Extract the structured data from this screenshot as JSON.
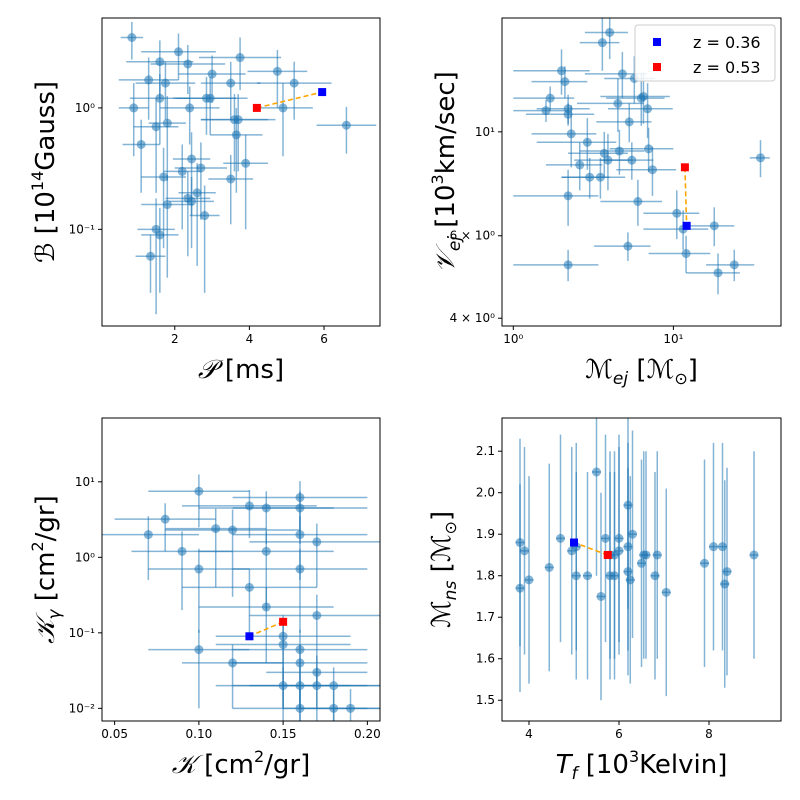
{
  "chart_data": [
    {
      "type": "scatter",
      "id": "p1",
      "xlabel_main": "𝒫",
      "xlabel_unit": "[ms]",
      "ylabel_main": "ℬ",
      "ylabel_unit": "[10",
      "ylabel_sup": "14",
      "ylabel_tail": "Gauss]",
      "xscale": "linear",
      "yscale": "log",
      "xlim": [
        0.05,
        7.5
      ],
      "ylim": [
        0.016,
        5.5
      ],
      "xticks": [
        {
          "v": 2,
          "label": "2"
        },
        {
          "v": 4,
          "label": "4"
        },
        {
          "v": 6,
          "label": "6"
        }
      ],
      "yticks": [
        {
          "v": 0.1,
          "label": "10⁻¹"
        },
        {
          "v": 1,
          "label": "10⁰"
        }
      ],
      "errorbars": true,
      "points": [
        [
          0.85,
          3.8,
          0.3,
          1.3
        ],
        [
          0.9,
          1.0,
          0.4,
          0.6
        ],
        [
          1.1,
          0.5,
          0.5,
          0.3
        ],
        [
          1.3,
          1.7,
          0.8,
          0.9
        ],
        [
          1.35,
          0.06,
          0.4,
          0.03
        ],
        [
          1.5,
          0.1,
          0.5,
          0.08
        ],
        [
          1.5,
          0.7,
          0.6,
          0.5
        ],
        [
          1.6,
          2.4,
          0.9,
          1.2
        ],
        [
          1.6,
          1.2,
          0.8,
          0.7
        ],
        [
          1.6,
          0.09,
          0.5,
          0.06
        ],
        [
          1.7,
          0.27,
          0.6,
          0.2
        ],
        [
          1.75,
          1.6,
          0.8,
          0.8
        ],
        [
          1.8,
          0.75,
          0.5,
          0.5
        ],
        [
          1.8,
          0.16,
          0.7,
          0.12
        ],
        [
          2.1,
          2.9,
          1.0,
          1.2
        ],
        [
          2.2,
          0.3,
          0.5,
          0.2
        ],
        [
          2.35,
          0.18,
          0.6,
          0.12
        ],
        [
          2.35,
          2.3,
          1.0,
          1.0
        ],
        [
          2.4,
          1.0,
          0.8,
          0.5
        ],
        [
          2.45,
          0.38,
          0.5,
          0.25
        ],
        [
          2.45,
          0.17,
          0.6,
          0.1
        ],
        [
          2.6,
          0.2,
          0.5,
          0.15
        ],
        [
          2.7,
          0.32,
          0.7,
          0.2
        ],
        [
          2.8,
          0.13,
          0.4,
          0.1
        ],
        [
          2.85,
          1.2,
          0.8,
          0.6
        ],
        [
          2.95,
          1.2,
          1.0,
          0.6
        ],
        [
          3.0,
          1.9,
          0.9,
          0.8
        ],
        [
          3.5,
          1.6,
          0.8,
          0.8
        ],
        [
          3.5,
          0.26,
          0.6,
          0.15
        ],
        [
          3.6,
          0.8,
          0.9,
          0.5
        ],
        [
          3.65,
          0.6,
          0.7,
          0.4
        ],
        [
          3.7,
          0.8,
          1.0,
          0.5
        ],
        [
          3.75,
          2.6,
          1.1,
          1.2
        ],
        [
          3.9,
          0.35,
          0.6,
          0.25
        ],
        [
          4.75,
          2.0,
          0.8,
          1.0
        ],
        [
          4.9,
          1.0,
          0.8,
          0.6
        ],
        [
          5.2,
          1.6,
          1.0,
          0.8
        ],
        [
          6.6,
          0.72,
          0.8,
          0.3
        ]
      ],
      "red": [
        4.2,
        1.0
      ],
      "blue": [
        5.95,
        1.35
      ]
    },
    {
      "type": "scatter",
      "id": "p2",
      "xlabel_main": "ℳ",
      "xlabel_sub": "ej",
      "xlabel_unit": "[ℳ",
      "xlabel_sub2": "⊙",
      "xlabel_tail": "]",
      "ylabel_main": "𝒱",
      "ylabel_sub": "ej",
      "ylabel_unit": "[10",
      "ylabel_sup": "3",
      "ylabel_tail": "km/sec]",
      "xscale": "log",
      "yscale": "log",
      "xlim": [
        0.85,
        47
      ],
      "ylim": [
        3.85,
        17.5
      ],
      "xticks": [
        {
          "v": 1,
          "label": "10⁰"
        },
        {
          "v": 10,
          "label": "10¹"
        }
      ],
      "yticks": [
        {
          "v": 4,
          "label": "4 × 10⁰"
        },
        {
          "v": 6,
          "label": "6 × 10⁰"
        },
        {
          "v": 10,
          "label": "10¹"
        }
      ],
      "errorbars": true,
      "points": [
        [
          1.6,
          11.1,
          0.6,
          0.6
        ],
        [
          1.7,
          11.8,
          0.7,
          0.7
        ],
        [
          2.0,
          13.5,
          1.0,
          1.5
        ],
        [
          2.1,
          12.8,
          0.8,
          1.0
        ],
        [
          2.2,
          11.2,
          0.8,
          0.8
        ],
        [
          2.2,
          10.9,
          1.0,
          0.6
        ],
        [
          2.2,
          7.3,
          1.2,
          1.0
        ],
        [
          2.2,
          5.2,
          1.2,
          0.4
        ],
        [
          2.3,
          9.9,
          1.0,
          1.5
        ],
        [
          2.6,
          8.5,
          1.0,
          1.0
        ],
        [
          2.9,
          9.5,
          1.5,
          1.2
        ],
        [
          3.0,
          8.0,
          1.0,
          0.8
        ],
        [
          3.5,
          8.0,
          1.5,
          0.8
        ],
        [
          3.6,
          15.5,
          1.0,
          2.0
        ],
        [
          3.7,
          9.0,
          1.5,
          1.0
        ],
        [
          3.9,
          8.7,
          1.5,
          1.2
        ],
        [
          4.0,
          16.3,
          1.2,
          2.0
        ],
        [
          4.5,
          11.5,
          2.0,
          1.5
        ],
        [
          4.6,
          9.1,
          2.0,
          1.0
        ],
        [
          4.8,
          13.3,
          2.0,
          1.5
        ],
        [
          5.2,
          5.7,
          2.0,
          0.4
        ],
        [
          5.3,
          10.5,
          2.0,
          1.0
        ],
        [
          5.5,
          8.7,
          2.0,
          0.8
        ],
        [
          5.7,
          13.0,
          2.0,
          1.5
        ],
        [
          6.0,
          7.1,
          2.5,
          0.8
        ],
        [
          6.3,
          11.8,
          2.5,
          1.5
        ],
        [
          6.5,
          11.9,
          3.0,
          1.5
        ],
        [
          6.9,
          11.2,
          3.0,
          1.5
        ],
        [
          7.0,
          9.2,
          3.0,
          1.0
        ],
        [
          7.4,
          8.3,
          3.0,
          1.0
        ],
        [
          10.5,
          6.7,
          4.0,
          0.8
        ],
        [
          11.5,
          6.2,
          5.0,
          0.6
        ],
        [
          12.0,
          5.5,
          5.0,
          0.5
        ],
        [
          18.0,
          6.3,
          6.0,
          0.6
        ],
        [
          19.0,
          5.0,
          7.0,
          0.5
        ],
        [
          24.0,
          5.2,
          8.0,
          0.4
        ],
        [
          35.0,
          8.8,
          5.0,
          0.8
        ]
      ],
      "red": [
        11.8,
        8.4
      ],
      "blue": [
        12.1,
        6.3
      ],
      "legend": [
        {
          "label": "z = 0.36",
          "color": "#0000ff"
        },
        {
          "label": "z = 0.53",
          "color": "#ff0000"
        }
      ],
      "legend_position": "top-right"
    },
    {
      "type": "scatter",
      "id": "p3",
      "xlabel_main": "𝒦",
      "xlabel_unit": "[cm",
      "xlabel_sup": "2",
      "xlabel_tail": "/gr]",
      "ylabel_main": "𝒦",
      "ylabel_sub": "γ",
      "ylabel_unit": "[cm",
      "ylabel_sup": "2",
      "ylabel_tail": "/gr]",
      "xscale": "linear",
      "yscale": "log",
      "xlim": [
        0.0425,
        0.2075
      ],
      "ylim": [
        0.0068,
        70
      ],
      "xticks": [
        {
          "v": 0.05,
          "label": "0.05"
        },
        {
          "v": 0.1,
          "label": "0.10"
        },
        {
          "v": 0.15,
          "label": "0.15"
        },
        {
          "v": 0.2,
          "label": "0.20"
        }
      ],
      "yticks": [
        {
          "v": 0.01,
          "label": "10⁻²"
        },
        {
          "v": 0.1,
          "label": "10⁻¹"
        },
        {
          "v": 1,
          "label": "10⁰"
        },
        {
          "v": 10,
          "label": "10¹"
        }
      ],
      "errorbars": true,
      "points": [
        [
          0.07,
          2.0,
          0.03,
          1.5
        ],
        [
          0.08,
          3.2,
          0.03,
          2.0
        ],
        [
          0.09,
          1.2,
          0.03,
          1.0
        ],
        [
          0.1,
          7.5,
          0.03,
          5.0
        ],
        [
          0.1,
          0.7,
          0.03,
          0.6
        ],
        [
          0.1,
          0.06,
          0.03,
          0.05
        ],
        [
          0.11,
          2.4,
          0.03,
          2.0
        ],
        [
          0.12,
          2.3,
          0.04,
          2.0
        ],
        [
          0.12,
          0.04,
          0.03,
          0.03
        ],
        [
          0.13,
          4.8,
          0.04,
          3.0
        ],
        [
          0.13,
          0.4,
          0.04,
          0.3
        ],
        [
          0.14,
          4.5,
          0.04,
          3.0
        ],
        [
          0.14,
          1.2,
          0.04,
          1.0
        ],
        [
          0.14,
          0.22,
          0.04,
          0.18
        ],
        [
          0.15,
          0.09,
          0.04,
          0.08
        ],
        [
          0.15,
          0.07,
          0.04,
          0.06
        ],
        [
          0.15,
          0.02,
          0.04,
          0.015
        ],
        [
          0.16,
          6.2,
          0.04,
          4.0
        ],
        [
          0.16,
          4.5,
          0.04,
          3.0
        ],
        [
          0.16,
          2.0,
          0.04,
          1.5
        ],
        [
          0.16,
          0.7,
          0.04,
          0.6
        ],
        [
          0.16,
          0.06,
          0.04,
          0.05
        ],
        [
          0.16,
          0.04,
          0.04,
          0.03
        ],
        [
          0.16,
          0.02,
          0.04,
          0.015
        ],
        [
          0.16,
          0.01,
          0.04,
          0.008
        ],
        [
          0.17,
          1.6,
          0.04,
          1.2
        ],
        [
          0.17,
          0.17,
          0.04,
          0.15
        ],
        [
          0.17,
          0.03,
          0.03,
          0.02
        ],
        [
          0.17,
          0.02,
          0.04,
          0.015
        ],
        [
          0.18,
          0.02,
          0.03,
          0.015
        ],
        [
          0.18,
          0.01,
          0.03,
          0.008
        ],
        [
          0.19,
          0.01,
          0.03,
          0.008
        ]
      ],
      "red": [
        0.15,
        0.14
      ],
      "blue": [
        0.13,
        0.09
      ]
    },
    {
      "type": "scatter",
      "id": "p4",
      "xlabel_main": "T",
      "xlabel_sub": "f",
      "xlabel_unit": "[10",
      "xlabel_sup": "3",
      "xlabel_tail": "Kelvin]",
      "ylabel_main": "ℳ",
      "ylabel_sub": "ns",
      "ylabel_unit": "[ℳ",
      "ylabel_sub2": "⊙",
      "ylabel_tail": "]",
      "xscale": "linear",
      "yscale": "linear",
      "xlim": [
        3.4,
        9.6
      ],
      "ylim": [
        1.45,
        2.18
      ],
      "xticks": [
        {
          "v": 4,
          "label": "4"
        },
        {
          "v": 6,
          "label": "6"
        },
        {
          "v": 8,
          "label": "8"
        }
      ],
      "yticks": [
        {
          "v": 1.5,
          "label": "1.5"
        },
        {
          "v": 1.6,
          "label": "1.6"
        },
        {
          "v": 1.7,
          "label": "1.7"
        },
        {
          "v": 1.8,
          "label": "1.8"
        },
        {
          "v": 1.9,
          "label": "1.9"
        },
        {
          "v": 2.0,
          "label": "2.0"
        },
        {
          "v": 2.1,
          "label": "2.1"
        }
      ],
      "errorbars": true,
      "points": [
        [
          3.8,
          1.77,
          0.1,
          0.25
        ],
        [
          3.8,
          1.88,
          0.1,
          0.25
        ],
        [
          3.9,
          1.86,
          0.1,
          0.25
        ],
        [
          4.0,
          1.79,
          0.1,
          0.25
        ],
        [
          4.45,
          1.82,
          0.1,
          0.25
        ],
        [
          4.7,
          1.89,
          0.1,
          0.25
        ],
        [
          4.95,
          1.86,
          0.1,
          0.25
        ],
        [
          5.05,
          1.8,
          0.1,
          0.25
        ],
        [
          5.05,
          1.87,
          0.1,
          0.25
        ],
        [
          5.3,
          1.8,
          0.1,
          0.25
        ],
        [
          5.5,
          2.05,
          0.1,
          0.25
        ],
        [
          5.6,
          1.75,
          0.1,
          0.25
        ],
        [
          5.7,
          1.89,
          0.1,
          0.25
        ],
        [
          5.8,
          1.8,
          0.1,
          0.25
        ],
        [
          5.8,
          1.85,
          0.1,
          0.25
        ],
        [
          5.9,
          1.85,
          0.1,
          0.25
        ],
        [
          5.9,
          1.8,
          0.1,
          0.25
        ],
        [
          6.0,
          1.89,
          0.1,
          0.25
        ],
        [
          6.0,
          1.86,
          0.1,
          0.25
        ],
        [
          6.2,
          1.97,
          0.1,
          0.25
        ],
        [
          6.2,
          1.87,
          0.1,
          0.25
        ],
        [
          6.2,
          1.81,
          0.1,
          0.25
        ],
        [
          6.25,
          1.79,
          0.1,
          0.25
        ],
        [
          6.3,
          1.9,
          0.1,
          0.25
        ],
        [
          6.5,
          1.83,
          0.1,
          0.25
        ],
        [
          6.55,
          1.85,
          0.1,
          0.25
        ],
        [
          6.6,
          1.85,
          0.1,
          0.25
        ],
        [
          6.8,
          1.8,
          0.1,
          0.25
        ],
        [
          6.85,
          1.85,
          0.1,
          0.25
        ],
        [
          7.05,
          1.76,
          0.1,
          0.25
        ],
        [
          7.9,
          1.83,
          0.1,
          0.25
        ],
        [
          8.1,
          1.87,
          0.1,
          0.25
        ],
        [
          8.3,
          1.87,
          0.1,
          0.25
        ],
        [
          8.35,
          1.78,
          0.1,
          0.25
        ],
        [
          8.4,
          1.81,
          0.1,
          0.25
        ],
        [
          9.0,
          1.85,
          0.1,
          0.25
        ]
      ],
      "red": [
        5.75,
        1.85
      ],
      "blue": [
        5.0,
        1.88
      ]
    }
  ]
}
